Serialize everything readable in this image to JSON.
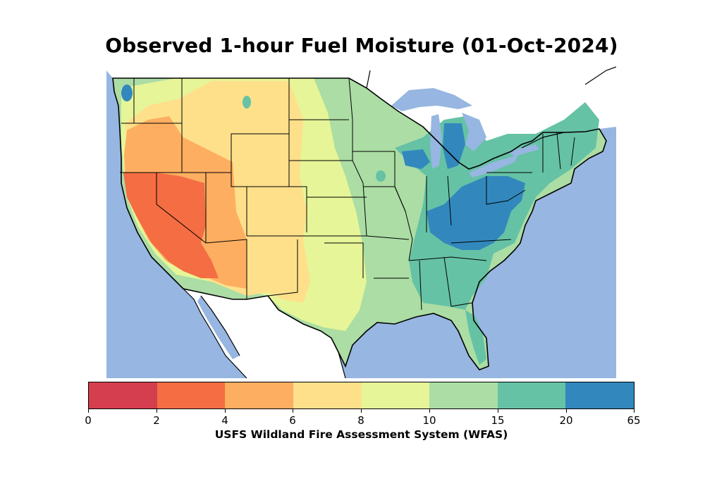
{
  "title": "Observed 1-hour Fuel Moisture (01-Oct-2024)",
  "colorbar": {
    "label": "USFS Wildland Fire Assessment System (WFAS)",
    "ticks": [
      "0",
      "2",
      "4",
      "6",
      "8",
      "10",
      "15",
      "20",
      "65"
    ],
    "colors": [
      "#d53e4f",
      "#f46d43",
      "#fdae61",
      "#fee08b",
      "#e6f598",
      "#abdda4",
      "#66c2a5",
      "#3288bd"
    ]
  },
  "map": {
    "ocean_color": "#97b6e1",
    "land_outside_color": "#ffffff",
    "border_color": "#000000"
  }
}
